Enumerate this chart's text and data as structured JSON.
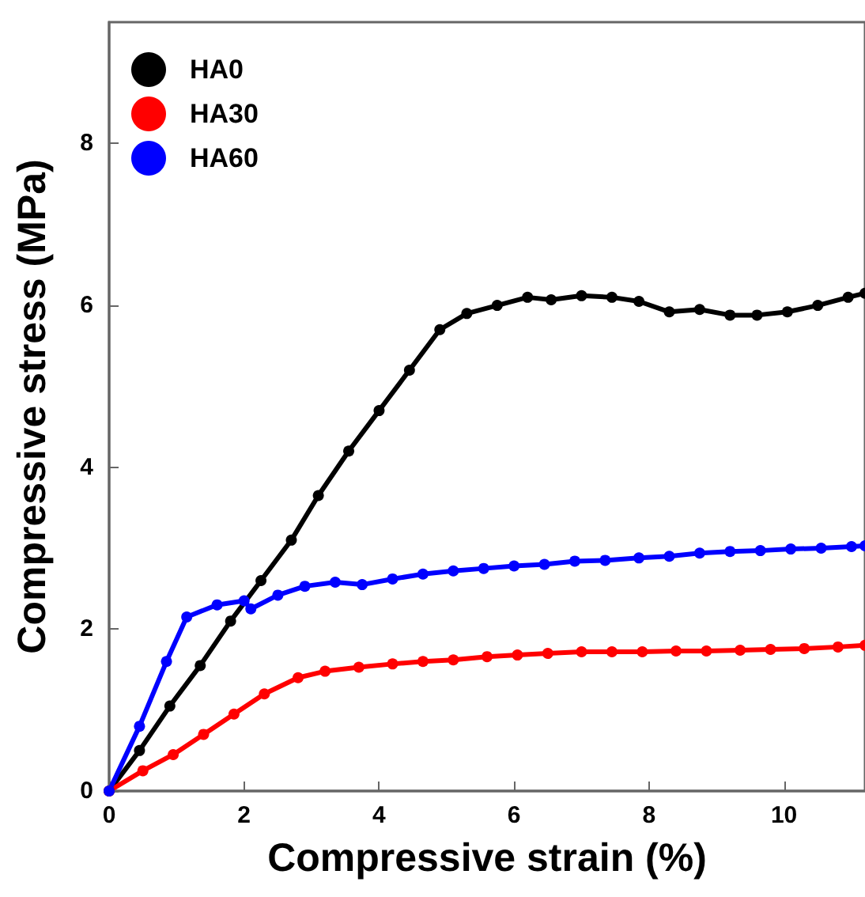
{
  "chart_data": {
    "type": "line",
    "xlabel": "Compressive strain (%)",
    "ylabel": "Compressive stress (MPa)",
    "xlim": [
      0,
      11.2
    ],
    "xticks": [
      0,
      2,
      4,
      6,
      8,
      10
    ],
    "ylim": [
      0,
      9.5
    ],
    "yticks": [
      0,
      2,
      4,
      6,
      8
    ],
    "grid": false,
    "legend": "top left",
    "marker": "circle",
    "line_style": "solid",
    "series": [
      {
        "name": "HA0",
        "color": "#000000",
        "x": [
          0,
          0.45,
          0.9,
          1.35,
          1.8,
          2.25,
          2.7,
          3.1,
          3.55,
          4.0,
          4.45,
          4.9,
          5.3,
          5.75,
          6.2,
          6.55,
          7.0,
          7.45,
          7.85,
          8.3,
          8.75,
          9.2,
          9.6,
          10.05,
          10.5,
          10.95,
          11.2
        ],
        "values": [
          0,
          0.5,
          1.05,
          1.55,
          2.1,
          2.6,
          3.1,
          3.65,
          4.2,
          4.7,
          5.2,
          5.7,
          5.9,
          6.0,
          6.1,
          6.07,
          6.12,
          6.1,
          6.05,
          5.92,
          5.95,
          5.88,
          5.88,
          5.92,
          6.0,
          6.1,
          6.15
        ]
      },
      {
        "name": "HA30",
        "color": "#ff0000",
        "x": [
          0,
          0.5,
          0.95,
          1.4,
          1.85,
          2.3,
          2.8,
          3.2,
          3.7,
          4.2,
          4.65,
          5.1,
          5.6,
          6.05,
          6.5,
          7.0,
          7.45,
          7.9,
          8.4,
          8.85,
          9.35,
          9.8,
          10.3,
          10.8,
          11.2
        ],
        "values": [
          0,
          0.25,
          0.45,
          0.7,
          0.95,
          1.2,
          1.4,
          1.48,
          1.53,
          1.57,
          1.6,
          1.62,
          1.66,
          1.68,
          1.7,
          1.72,
          1.72,
          1.72,
          1.73,
          1.73,
          1.74,
          1.75,
          1.76,
          1.78,
          1.8
        ]
      },
      {
        "name": "HA60",
        "color": "#0000ff",
        "x": [
          0,
          0.45,
          0.85,
          1.15,
          1.6,
          2.0,
          2.1,
          2.5,
          2.9,
          3.35,
          3.75,
          4.2,
          4.65,
          5.1,
          5.55,
          6.0,
          6.45,
          6.9,
          7.35,
          7.85,
          8.3,
          8.75,
          9.2,
          9.65,
          10.1,
          10.55,
          11.0,
          11.2
        ],
        "values": [
          0,
          0.8,
          1.6,
          2.15,
          2.3,
          2.35,
          2.25,
          2.42,
          2.53,
          2.58,
          2.55,
          2.62,
          2.68,
          2.72,
          2.75,
          2.78,
          2.8,
          2.84,
          2.85,
          2.88,
          2.9,
          2.94,
          2.96,
          2.97,
          2.99,
          3.0,
          3.02,
          3.03
        ]
      }
    ]
  }
}
